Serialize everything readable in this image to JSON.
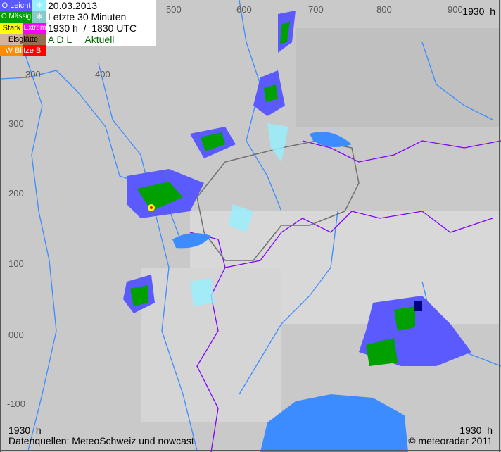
{
  "legend": {
    "light": "O Leicht",
    "moderate": "O Mässig",
    "strong": "Stark",
    "extreme": "Extrem",
    "ice": "Eisglätte",
    "lightning": "W  Blitze  B",
    "snow_icon": "snowflake-icon"
  },
  "info": {
    "date": "20.03.2013",
    "period": "Letzte 30 Minuten",
    "time": "1930 h  /  1830 UTC",
    "mode": "A D L     Aktuell"
  },
  "axes": {
    "top": [
      "500",
      "600",
      "700",
      "800",
      "900"
    ],
    "inner_top": [
      "300",
      "400"
    ],
    "left": [
      "300",
      "200",
      "100",
      "000",
      "-100"
    ]
  },
  "time_top_right": "1930  h",
  "time_bottom_left": "1930  h",
  "time_bottom_right": "1930  h",
  "sources": "Datenquellen: MeteoSchweiz und nowcast",
  "copyright": "© meteoradar 2011",
  "colors": {
    "light": "#5a5aff",
    "moderate": "#00a000",
    "strong": "#ffff00",
    "extreme": "#ff00ff",
    "water": "#3c8cff",
    "border": "#8000ff"
  }
}
